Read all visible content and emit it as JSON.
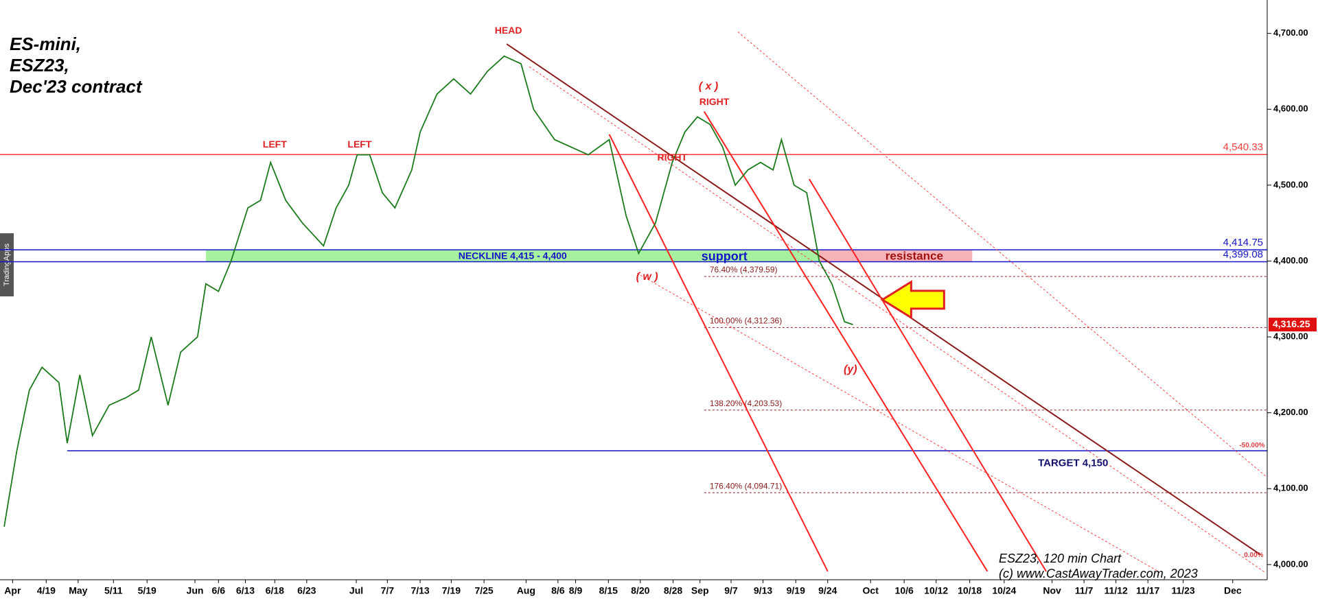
{
  "chart_data": {
    "type": "line",
    "title": [
      "ES-mini,",
      "ESZ23,",
      "Dec'23 contract"
    ],
    "notes": [
      "ESZ23, 120 min Chart",
      "(c) www.CastAwayTrader.com, 2023"
    ],
    "watermark": "TradingApps",
    "xlim": [
      0,
      1508
    ],
    "ylim": [
      3980,
      4744
    ],
    "yticks": [
      {
        "value": 4000,
        "label": "4,000.00"
      },
      {
        "value": 4100,
        "label": "4,100.00"
      },
      {
        "value": 4200,
        "label": "4,200.00"
      },
      {
        "value": 4300,
        "label": "4,300.00"
      },
      {
        "value": 4400,
        "label": "4,400.00"
      },
      {
        "value": 4500,
        "label": "4,500.00"
      },
      {
        "value": 4600,
        "label": "4,600.00"
      },
      {
        "value": 4700,
        "label": "4,700.00"
      }
    ],
    "xticks": [
      {
        "value": 15,
        "label": "Apr"
      },
      {
        "value": 55,
        "label": "4/19"
      },
      {
        "value": 93,
        "label": "May"
      },
      {
        "value": 135,
        "label": "5/11"
      },
      {
        "value": 175,
        "label": "5/19"
      },
      {
        "value": 232,
        "label": "Jun"
      },
      {
        "value": 260,
        "label": "6/6"
      },
      {
        "value": 292,
        "label": "6/13"
      },
      {
        "value": 327,
        "label": "6/18"
      },
      {
        "value": 365,
        "label": "6/23"
      },
      {
        "value": 424,
        "label": "Jul"
      },
      {
        "value": 461,
        "label": "7/7"
      },
      {
        "value": 500,
        "label": "7/13"
      },
      {
        "value": 537,
        "label": "7/19"
      },
      {
        "value": 576,
        "label": "7/25"
      },
      {
        "value": 626,
        "label": "Aug"
      },
      {
        "value": 664,
        "label": "8/6"
      },
      {
        "value": 685,
        "label": "8/9"
      },
      {
        "value": 724,
        "label": "8/15"
      },
      {
        "value": 762,
        "label": "8/20"
      },
      {
        "value": 801,
        "label": "8/28"
      },
      {
        "value": 833,
        "label": "Sep"
      },
      {
        "value": 870,
        "label": "9/7"
      },
      {
        "value": 908,
        "label": "9/13"
      },
      {
        "value": 947,
        "label": "9/19"
      },
      {
        "value": 985,
        "label": "9/24"
      },
      {
        "value": 1036,
        "label": "Oct"
      },
      {
        "value": 1076,
        "label": "10/6"
      },
      {
        "value": 1114,
        "label": "10/12"
      },
      {
        "value": 1154,
        "label": "10/18"
      },
      {
        "value": 1195,
        "label": "10/24"
      },
      {
        "value": 1252,
        "label": "Nov"
      },
      {
        "value": 1290,
        "label": "11/7"
      },
      {
        "value": 1328,
        "label": "11/12"
      },
      {
        "value": 1366,
        "label": "11/17"
      },
      {
        "value": 1408,
        "label": "11/23"
      },
      {
        "value": 1467,
        "label": "Dec"
      }
    ],
    "series": [
      {
        "name": "ESZ23",
        "color": "#1a7a1a",
        "x": [
          5,
          20,
          35,
          50,
          70,
          80,
          95,
          110,
          130,
          150,
          165,
          180,
          200,
          215,
          235,
          245,
          260,
          275,
          295,
          310,
          322,
          340,
          360,
          385,
          400,
          415,
          425,
          440,
          455,
          470,
          490,
          500,
          520,
          540,
          560,
          580,
          600,
          620,
          635,
          660,
          680,
          700,
          725,
          745,
          760,
          780,
          800,
          815,
          830,
          845,
          860,
          875,
          890,
          905,
          920,
          930,
          945,
          960,
          975,
          990,
          1005,
          1015
        ],
        "values": [
          4050,
          4150,
          4230,
          4260,
          4240,
          4160,
          4250,
          4170,
          4210,
          4220,
          4230,
          4300,
          4210,
          4280,
          4300,
          4370,
          4360,
          4400,
          4470,
          4480,
          4530,
          4480,
          4450,
          4420,
          4470,
          4500,
          4540,
          4540,
          4490,
          4470,
          4520,
          4570,
          4620,
          4640,
          4620,
          4650,
          4670,
          4660,
          4600,
          4560,
          4550,
          4540,
          4560,
          4460,
          4410,
          4450,
          4530,
          4570,
          4590,
          4580,
          4550,
          4500,
          4520,
          4530,
          4520,
          4560,
          4500,
          4490,
          4400,
          4370,
          4320,
          4316.25
        ]
      }
    ],
    "last_price": {
      "value": 4316.25,
      "label": "4,316.25"
    },
    "levels": [
      {
        "value": 4540.33,
        "label": "4,540.33",
        "color": "#ff3b3b",
        "style": "solid",
        "x": [
          0,
          1508
        ]
      },
      {
        "value": 4414.75,
        "label": "4,414.75",
        "color": "#1414c8",
        "style": "solid",
        "x": [
          0,
          1508
        ]
      },
      {
        "value": 4399.08,
        "label": "4,399.08",
        "color": "#1414c8",
        "style": "solid",
        "x": [
          0,
          1508
        ]
      },
      {
        "value": 4150,
        "color": "#1414c8",
        "style": "solid",
        "x": [
          80,
          1508
        ]
      },
      {
        "value": 4379.59,
        "label": "76.40% (4,379.59)",
        "color": "#8b1a1a",
        "style": "dashed",
        "x": [
          838,
          1508
        ]
      },
      {
        "value": 4312.36,
        "label": "100.00% (4,312.36)",
        "color": "#8b1a1a",
        "style": "dashed",
        "x": [
          838,
          1508
        ]
      },
      {
        "value": 4203.53,
        "label": "138.20% (4,203.53)",
        "color": "#8b1a1a",
        "style": "dashed",
        "x": [
          838,
          1508
        ]
      },
      {
        "value": 4094.71,
        "label": "176.40% (4,094.71)",
        "color": "#8b1a1a",
        "style": "dashed",
        "x": [
          838,
          1508
        ]
      }
    ],
    "zones": [
      {
        "x": [
          245,
          975
        ],
        "y": [
          4399.08,
          4414.75
        ],
        "color": "#a6f0a0"
      },
      {
        "x": [
          975,
          1157
        ],
        "y": [
          4399.08,
          4414.75
        ],
        "color": "#f5b3b8"
      }
    ],
    "trendlines": [
      {
        "x": [
          603,
          1500
        ],
        "y": [
          4686,
          4013
        ],
        "color": "#8b1a1a",
        "style": "solid"
      },
      {
        "x": [
          725,
          985
        ],
        "y": [
          4567,
          3991
        ],
        "color": "#ff2020",
        "style": "solid"
      },
      {
        "x": [
          838,
          1175
        ],
        "y": [
          4597,
          3991
        ],
        "color": "#ff2020",
        "style": "solid"
      },
      {
        "x": [
          963,
          1245
        ],
        "y": [
          4508,
          3991
        ],
        "color": "#ff2020",
        "style": "solid"
      },
      {
        "x": [
          878,
          1510
        ],
        "y": [
          4702,
          4113
        ],
        "color": "#ff4040",
        "style": "dashed"
      },
      {
        "x": [
          630,
          1505
        ],
        "y": [
          4656,
          3990
        ],
        "color": "#ff4040",
        "style": "dashed"
      },
      {
        "x": [
          758,
          1380
        ],
        "y": [
          4384,
          3990
        ],
        "color": "#ff4040",
        "style": "dashed"
      }
    ],
    "annotations": [
      {
        "text": "HEAD",
        "x": 605,
        "y": 4703,
        "color": "#e02020",
        "size": 14
      },
      {
        "text": "LEFT",
        "x": 327,
        "y": 4553,
        "color": "#e02020",
        "size": 14
      },
      {
        "text": "LEFT",
        "x": 428,
        "y": 4553,
        "color": "#e02020",
        "size": 14
      },
      {
        "text": "RIGHT",
        "x": 850,
        "y": 4609,
        "color": "#e02020",
        "size": 14
      },
      {
        "text": "RIGHT",
        "x": 800,
        "y": 4536,
        "color": "#e02020",
        "size": 14
      },
      {
        "text": "( x )",
        "x": 843,
        "y": 4630,
        "color": "#e02020",
        "size": 16
      },
      {
        "text": "( w )",
        "x": 770,
        "y": 4379,
        "color": "#e02020",
        "size": 16
      },
      {
        "text": "(y)",
        "x": 1012,
        "y": 4257,
        "color": "#e02020",
        "size": 16
      },
      {
        "text": "NECKLINE 4,415 - 4,400",
        "x": 610,
        "y": 4406,
        "color": "#1414c8",
        "size": 14
      },
      {
        "text": "support",
        "x": 862,
        "y": 4405,
        "color": "#1414c8",
        "size": 18
      },
      {
        "text": "resistance",
        "x": 1088,
        "y": 4406,
        "color": "#a01010",
        "size": 17
      },
      {
        "text": "TARGET 4,150",
        "x": 1277,
        "y": 4133,
        "color": "#101070",
        "size": 15
      },
      {
        "text": "-50.00%",
        "x": 1490,
        "y": 4157,
        "color": "#e04040",
        "size": 10
      },
      {
        "text": "0.00%",
        "x": 1492,
        "y": 4012,
        "color": "#e04040",
        "size": 10
      }
    ]
  }
}
